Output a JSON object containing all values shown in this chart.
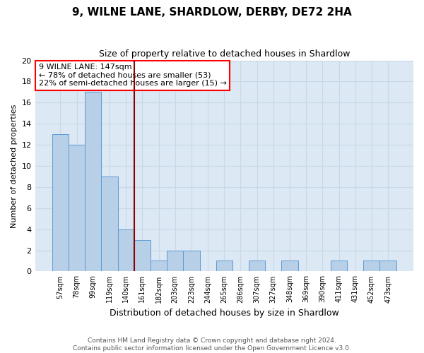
{
  "title": "9, WILNE LANE, SHARDLOW, DERBY, DE72 2HA",
  "subtitle": "Size of property relative to detached houses in Shardlow",
  "xlabel": "Distribution of detached houses by size in Shardlow",
  "ylabel": "Number of detached properties",
  "footnote1": "Contains HM Land Registry data © Crown copyright and database right 2024.",
  "footnote2": "Contains public sector information licensed under the Open Government Licence v3.0.",
  "categories": [
    "57sqm",
    "78sqm",
    "99sqm",
    "119sqm",
    "140sqm",
    "161sqm",
    "182sqm",
    "203sqm",
    "223sqm",
    "244sqm",
    "265sqm",
    "286sqm",
    "307sqm",
    "327sqm",
    "348sqm",
    "369sqm",
    "390sqm",
    "411sqm",
    "431sqm",
    "452sqm",
    "473sqm"
  ],
  "values": [
    13,
    12,
    17,
    9,
    4,
    3,
    1,
    2,
    2,
    0,
    1,
    0,
    1,
    0,
    1,
    0,
    0,
    1,
    0,
    1,
    1
  ],
  "bar_color": "#b8cfe8",
  "bar_edge_color": "#5b9bd5",
  "vline_color": "#8b0000",
  "annotation_text": "9 WILNE LANE: 147sqm\n← 78% of detached houses are smaller (53)\n22% of semi-detached houses are larger (15) →",
  "annotation_box_color": "white",
  "annotation_box_edge_color": "red",
  "ylim": [
    0,
    20
  ],
  "yticks": [
    0,
    2,
    4,
    6,
    8,
    10,
    12,
    14,
    16,
    18,
    20
  ],
  "grid_color": "#c8d8e8",
  "background_color": "#dce8f4"
}
